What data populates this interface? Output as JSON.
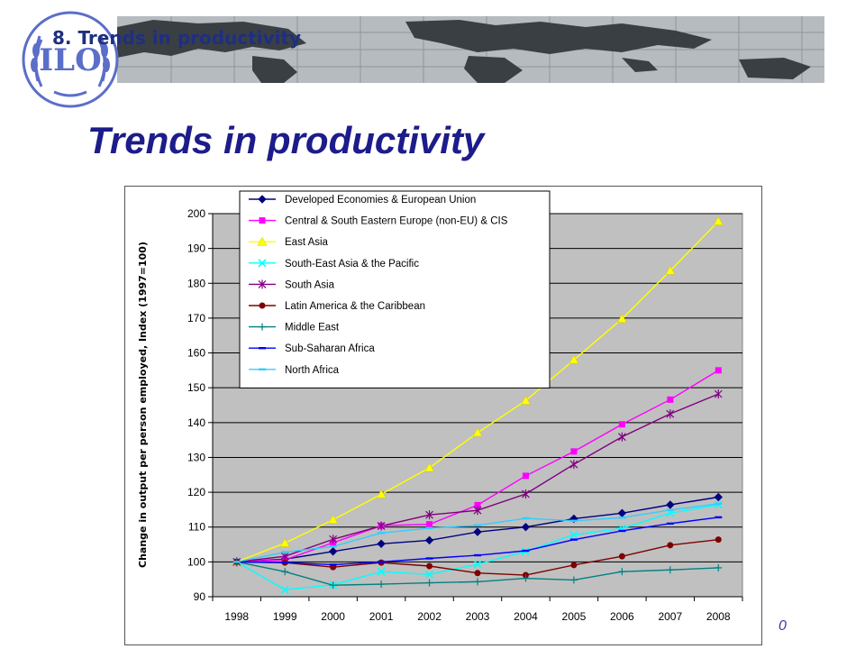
{
  "header": {
    "section_label": "8. Trends in productivity",
    "logo_icon": "ilo-emblem-icon"
  },
  "slide": {
    "title": "Trends in productivity",
    "page_number": "0"
  },
  "chart_data": {
    "type": "line",
    "title": "",
    "xlabel": "",
    "ylabel": "Change in output per person employed, Index (1997=100)",
    "ylim": [
      90,
      200
    ],
    "yticks": [
      90,
      100,
      110,
      120,
      130,
      140,
      150,
      160,
      170,
      180,
      190,
      200
    ],
    "grid": true,
    "legend_position": "top-left",
    "categories": [
      "1998",
      "1999",
      "2000",
      "2001",
      "2002",
      "2003",
      "2004",
      "2005",
      "2006",
      "2007",
      "2008"
    ],
    "series": [
      {
        "name": "Developed Economies & European Union",
        "color": "#000080",
        "marker": "diamond",
        "values": [
          100,
          100.8,
          103,
          105.2,
          106.2,
          108.6,
          110,
          112.4,
          114,
          116.4,
          118.6
        ]
      },
      {
        "name": "Central & South Eastern Europe (non-EU) & CIS",
        "color": "#ff00ff",
        "marker": "square",
        "values": [
          100,
          100.6,
          105.5,
          110.4,
          110.8,
          116.3,
          124.7,
          131.7,
          139.5,
          146.6,
          155
        ]
      },
      {
        "name": "East Asia",
        "color": "#ffff00",
        "marker": "triangle",
        "values": [
          100,
          105.4,
          112.1,
          119.4,
          127,
          137.1,
          146.3,
          158,
          169.8,
          183.6,
          197.8
        ]
      },
      {
        "name": "South-East Asia & the Pacific",
        "color": "#00ffff",
        "marker": "x",
        "values": [
          100,
          92,
          93.4,
          97.2,
          96.4,
          99.3,
          103,
          107.8,
          109.6,
          114,
          116.4
        ]
      },
      {
        "name": "South Asia",
        "color": "#800080",
        "marker": "star",
        "values": [
          100,
          101.6,
          106.5,
          110.3,
          113.5,
          114.8,
          119.5,
          128,
          135.9,
          142.5,
          148.2
        ]
      },
      {
        "name": "Latin America & the Caribbean",
        "color": "#800000",
        "marker": "circle",
        "values": [
          100,
          99.8,
          98.5,
          99.8,
          98.8,
          96.8,
          96.2,
          99.1,
          101.6,
          104.8,
          106.4
        ]
      },
      {
        "name": "Middle East",
        "color": "#008080",
        "marker": "plus",
        "values": [
          100,
          97.2,
          93.3,
          93.6,
          94,
          94.3,
          95.3,
          94.8,
          97.2,
          97.7,
          98.3
        ]
      },
      {
        "name": "Sub-Saharan Africa",
        "color": "#0000ff",
        "marker": "dash",
        "values": [
          100,
          99.8,
          99.2,
          100,
          101,
          101.9,
          103.2,
          106.4,
          108.9,
          111,
          112.8
        ]
      },
      {
        "name": "North Africa",
        "color": "#33ccff",
        "marker": "dash",
        "values": [
          100,
          102.8,
          104.4,
          108.3,
          109.7,
          110.5,
          112.5,
          111.8,
          112.7,
          114.9,
          116.7
        ]
      }
    ]
  }
}
